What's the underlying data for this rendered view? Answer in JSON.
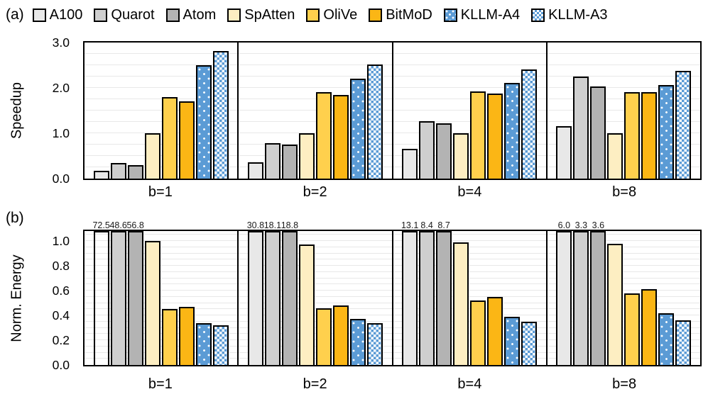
{
  "figure": {
    "panel_a_label": "(a)",
    "panel_b_label": "(b)"
  },
  "colors": {
    "a100_gray": "#e8e8e8",
    "quarot_gray": "#cfcfcf",
    "atom_gray": "#b3b3b3",
    "spatten_cream": "#fdeec2",
    "olive_yellow": "#ffd04d",
    "bitmod_gold": "#fbb615",
    "kllm_blue": "#5b9bd5",
    "bar_border": "#000000",
    "gridline": "#e8e8e8"
  },
  "legend": {
    "items": [
      {
        "label": "A100",
        "fill": "#e8e8e8"
      },
      {
        "label": "Quarot",
        "fill": "#cfcfcf"
      },
      {
        "label": "Atom",
        "fill": "#b3b3b3"
      },
      {
        "label": "SpAtten",
        "fill": "#fdeec2"
      },
      {
        "label": "OliVe",
        "fill": "#ffd04d"
      },
      {
        "label": "BitMoD",
        "fill": "#fbb615"
      },
      {
        "label": "KLLM-A4",
        "fill": "dots"
      },
      {
        "label": "KLLM-A3",
        "fill": "checker"
      }
    ]
  },
  "chart_data": [
    {
      "type": "bar",
      "panel": "(a)",
      "ylabel": "Speedup",
      "ylim": [
        0.0,
        3.0
      ],
      "yticks": [
        0.0,
        1.0,
        2.0,
        3.0
      ],
      "grid_step": 0.25,
      "grid": true,
      "legend_position": "top",
      "groups": [
        "b=1",
        "b=2",
        "b=4",
        "b=8"
      ],
      "series": [
        {
          "name": "A100",
          "fill": "#e8e8e8",
          "values": [
            0.17,
            0.36,
            0.65,
            1.15
          ]
        },
        {
          "name": "Quarot",
          "fill": "#cfcfcf",
          "values": [
            0.34,
            0.78,
            1.26,
            2.25
          ]
        },
        {
          "name": "Atom",
          "fill": "#b3b3b3",
          "values": [
            0.3,
            0.75,
            1.22,
            2.03
          ]
        },
        {
          "name": "SpAtten",
          "fill": "#fdeec2",
          "values": [
            1.0,
            1.0,
            1.0,
            1.0
          ]
        },
        {
          "name": "OliVe",
          "fill": "#ffd04d",
          "values": [
            1.8,
            1.9,
            1.92,
            1.91
          ]
        },
        {
          "name": "BitMoD",
          "fill": "#fbb615",
          "values": [
            1.71,
            1.84,
            1.87,
            1.9
          ]
        },
        {
          "name": "KLLM-A4",
          "fill": "dots",
          "values": [
            2.5,
            2.2,
            2.11,
            2.07
          ]
        },
        {
          "name": "KLLM-A3",
          "fill": "checker",
          "values": [
            2.81,
            2.51,
            2.41,
            2.37
          ]
        }
      ]
    },
    {
      "type": "bar",
      "panel": "(b)",
      "ylabel": "Norm. Energy",
      "ylim": [
        0.0,
        1.08
      ],
      "yticks": [
        0.0,
        0.2,
        0.4,
        0.6,
        0.8,
        1.0
      ],
      "grid_step": 0.05,
      "grid": true,
      "groups": [
        "b=1",
        "b=2",
        "b=4",
        "b=8"
      ],
      "series": [
        {
          "name": "A100",
          "fill": "#e8e8e8",
          "clipped": true,
          "values": [
            72.5,
            30.8,
            13.1,
            6.0
          ],
          "labels": [
            "72.5",
            "30.8",
            "13.1",
            "6.0"
          ]
        },
        {
          "name": "Quarot",
          "fill": "#cfcfcf",
          "clipped": true,
          "values": [
            48.6,
            18.1,
            8.4,
            3.3
          ],
          "labels": [
            "48.6",
            "18.1",
            "8.4",
            "3.3"
          ]
        },
        {
          "name": "Atom",
          "fill": "#b3b3b3",
          "clipped": true,
          "values": [
            56.8,
            18.8,
            8.7,
            3.6
          ],
          "labels": [
            "56.8",
            "18.8",
            "8.7",
            "3.6"
          ]
        },
        {
          "name": "SpAtten",
          "fill": "#fdeec2",
          "values": [
            1.0,
            0.97,
            0.99,
            0.98
          ]
        },
        {
          "name": "OliVe",
          "fill": "#ffd04d",
          "values": [
            0.45,
            0.46,
            0.52,
            0.58
          ]
        },
        {
          "name": "BitMoD",
          "fill": "#fbb615",
          "values": [
            0.47,
            0.48,
            0.55,
            0.61
          ]
        },
        {
          "name": "KLLM-A4",
          "fill": "dots",
          "values": [
            0.34,
            0.37,
            0.39,
            0.42
          ]
        },
        {
          "name": "KLLM-A3",
          "fill": "checker",
          "values": [
            0.32,
            0.34,
            0.35,
            0.36
          ]
        }
      ],
      "fill_overrides": [
        {
          "series": "A100",
          "group_index": 0,
          "fill": "transparent"
        }
      ]
    }
  ]
}
